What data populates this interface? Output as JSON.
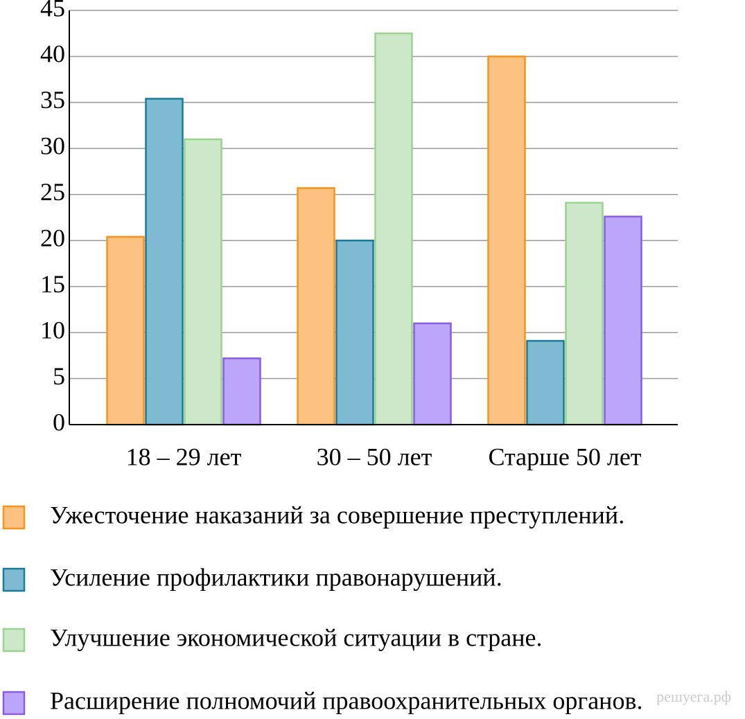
{
  "chart_data": {
    "type": "bar",
    "categories": [
      "18 – 29 лет",
      "30 – 50 лет",
      "Старше 50 лет"
    ],
    "series": [
      {
        "name": "Ужесточение наказаний за совершение преступлений.",
        "color": "#fdc282",
        "stroke": "#f7941d",
        "values": [
          20.4,
          25.7,
          40
        ]
      },
      {
        "name": "Усиление профилактики правонарушений.",
        "color": "#7fbad3",
        "stroke": "#1a7a9a",
        "values": [
          35.4,
          20,
          9.1
        ]
      },
      {
        "name": "Улучшение экономической ситуации в стране.",
        "color": "#cde8c8",
        "stroke": "#99d38f",
        "values": [
          31,
          42.5,
          24.1
        ]
      },
      {
        "name": "Расширение полномочий правоохранительных органов.",
        "color": "#bba6fb",
        "stroke": "#8a5ce6",
        "values": [
          7.2,
          11,
          22.6
        ]
      }
    ],
    "ylim": [
      0,
      45
    ],
    "yticks": [
      0,
      5,
      10,
      15,
      20,
      25,
      30,
      35,
      40,
      45
    ],
    "grid": true,
    "watermark": "решуега.рф"
  }
}
